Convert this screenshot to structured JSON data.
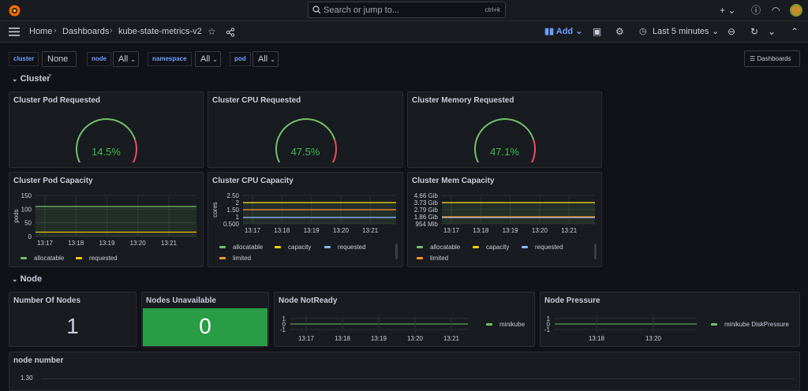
{
  "search": {
    "placeholder": "Search or jump to...",
    "shortcut": "ctrl+k"
  },
  "breadcrumb": {
    "home": "Home",
    "dashboards": "Dashboards",
    "current": "kube-state-metrics-v2"
  },
  "toolbar": {
    "add_label": "Add",
    "time_range": "Last 5 minutes"
  },
  "variables": [
    {
      "label": "cluster",
      "value": "None"
    },
    {
      "label": "node",
      "value": "All"
    },
    {
      "label": "namespace",
      "value": "All"
    },
    {
      "label": "pod",
      "value": "All"
    }
  ],
  "dashboards_button": "Dashboards",
  "rows": {
    "cluster": "Cluster",
    "node": "Node"
  },
  "gauges": [
    {
      "title": "Cluster Pod Requested",
      "value": "14.5%",
      "percent": 14.5
    },
    {
      "title": "Cluster CPU Requested",
      "value": "47.5%",
      "percent": 47.5
    },
    {
      "title": "Cluster Memory Requested",
      "value": "47.1%",
      "percent": 47.1
    }
  ],
  "capacity_charts": [
    {
      "title": "Cluster Pod Capacity",
      "ylabel": "pods",
      "yticks": [
        "150",
        "100",
        "50",
        "0"
      ],
      "xticks": [
        "13:17",
        "13:18",
        "13:19",
        "13:20",
        "13:21"
      ],
      "legend": [
        {
          "name": "allocatable",
          "color": "#73bf69"
        },
        {
          "name": "requested",
          "color": "#f2cc0c"
        }
      ]
    },
    {
      "title": "Cluster CPU Capacity",
      "ylabel": "cores",
      "yticks": [
        "2.50",
        "2",
        "1.50",
        "1",
        "0.500"
      ],
      "xticks": [
        "13:17",
        "13:18",
        "13:19",
        "13:20",
        "13:21"
      ],
      "legend": [
        {
          "name": "allocatable",
          "color": "#73bf69"
        },
        {
          "name": "capacity",
          "color": "#f2cc0c"
        },
        {
          "name": "requested",
          "color": "#8ab8ff"
        },
        {
          "name": "limited",
          "color": "#ff9830"
        }
      ]
    },
    {
      "title": "Cluster Mem Capacity",
      "ylabel": "",
      "yticks": [
        "4.66 Gib",
        "3.73 Gib",
        "2.79 Gib",
        "1.86 Gib",
        "954 Mib"
      ],
      "xticks": [
        "13:17",
        "13:18",
        "13:19",
        "13:20",
        "13:21"
      ],
      "legend": [
        {
          "name": "allocatable",
          "color": "#73bf69"
        },
        {
          "name": "capacity",
          "color": "#f2cc0c"
        },
        {
          "name": "requested",
          "color": "#8ab8ff"
        },
        {
          "name": "limited",
          "color": "#ff9830"
        }
      ]
    }
  ],
  "chart_data": [
    {
      "type": "line",
      "title": "Cluster Pod Capacity",
      "ylabel": "pods",
      "x": [
        "13:17",
        "13:18",
        "13:19",
        "13:20",
        "13:21"
      ],
      "ylim": [
        0,
        150
      ],
      "series": [
        {
          "name": "allocatable",
          "values": [
            110,
            110,
            110,
            110,
            110
          ]
        },
        {
          "name": "requested",
          "values": [
            16,
            16,
            16,
            16,
            16
          ]
        }
      ]
    },
    {
      "type": "line",
      "title": "Cluster CPU Capacity",
      "ylabel": "cores",
      "x": [
        "13:17",
        "13:18",
        "13:19",
        "13:20",
        "13:21"
      ],
      "ylim": [
        0.5,
        2.5
      ],
      "series": [
        {
          "name": "allocatable",
          "values": [
            2,
            2,
            2,
            2,
            2
          ]
        },
        {
          "name": "capacity",
          "values": [
            2,
            2,
            2,
            2,
            2
          ]
        },
        {
          "name": "requested",
          "values": [
            0.95,
            0.95,
            0.95,
            0.95,
            0.95
          ]
        },
        {
          "name": "limited",
          "values": [
            1.5,
            1.5,
            1.5,
            1.5,
            1.5
          ]
        }
      ]
    },
    {
      "type": "line",
      "title": "Cluster Mem Capacity",
      "x": [
        "13:17",
        "13:18",
        "13:19",
        "13:20",
        "13:21"
      ],
      "ylim": [
        0.93,
        4.66
      ],
      "series": [
        {
          "name": "allocatable",
          "values": [
            3.73,
            3.73,
            3.73,
            3.73,
            3.73
          ]
        },
        {
          "name": "capacity",
          "values": [
            3.73,
            3.73,
            3.73,
            3.73,
            3.73
          ]
        },
        {
          "name": "requested",
          "values": [
            1.75,
            1.75,
            1.75,
            1.75,
            1.75
          ]
        },
        {
          "name": "limited",
          "values": [
            1.86,
            1.86,
            1.86,
            1.86,
            1.86
          ]
        }
      ]
    }
  ],
  "node_panels": {
    "number_of_nodes": {
      "title": "Number Of Nodes",
      "value": "1"
    },
    "nodes_unavailable": {
      "title": "Nodes Unavailable",
      "value": "0"
    },
    "node_notready": {
      "title": "Node NotReady",
      "yticks": [
        "1",
        "0",
        "-1"
      ],
      "xticks": [
        "13:17",
        "13:18",
        "13:19",
        "13:20",
        "13:21"
      ],
      "legend": "minikube"
    },
    "node_pressure": {
      "title": "Node Pressure",
      "yticks": [
        "1",
        "0",
        "-1"
      ],
      "xticks": [
        "13:18",
        "13:20"
      ],
      "legend": "minikube DiskPressure"
    },
    "node_number": {
      "title": "node number",
      "ytick": "1.30"
    }
  },
  "colors": {
    "green": "#73bf69",
    "yellow": "#f2cc0c",
    "blue": "#8ab8ff",
    "orange": "#ff9830",
    "red": "#f2495c",
    "stat_green": "#299c46",
    "accent": "#6e9fff"
  }
}
